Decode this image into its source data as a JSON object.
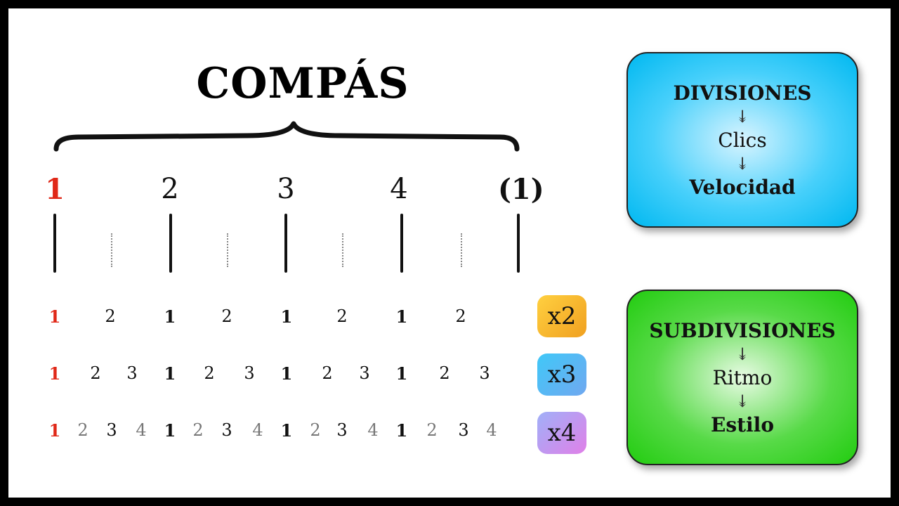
{
  "title": "COMPÁS",
  "beats": [
    "1",
    "2",
    "3",
    "4",
    "(1)"
  ],
  "rows": {
    "x2": [
      "1",
      "2",
      "1",
      "2",
      "1",
      "2",
      "1",
      "2"
    ],
    "x3": [
      "1",
      "2",
      "3",
      "1",
      "2",
      "3",
      "1",
      "2",
      "3",
      "1",
      "2",
      "3"
    ],
    "x4": [
      "1",
      "2",
      "3",
      "4",
      "1",
      "2",
      "3",
      "4",
      "1",
      "2",
      "3",
      "4",
      "1",
      "2",
      "3",
      "4"
    ]
  },
  "badges": {
    "x2": "x2",
    "x3": "x3",
    "x4": "x4"
  },
  "divisions": {
    "heading": "DIVISIONES",
    "arrow": "↡",
    "middle": "Clics",
    "footer": "Velocidad"
  },
  "subdivisions": {
    "heading": "SUBDIVISIONES",
    "arrow": "↡",
    "middle": "Ritmo",
    "footer": "Estilo"
  },
  "colors": {
    "accent_red": "#e02818",
    "divisions_box": "#28c8f8",
    "subdivisions_box": "#30d020",
    "badge_x2": "#f8b830",
    "badge_x3": "#50b8f0",
    "badge_x4": "#c890f0"
  }
}
